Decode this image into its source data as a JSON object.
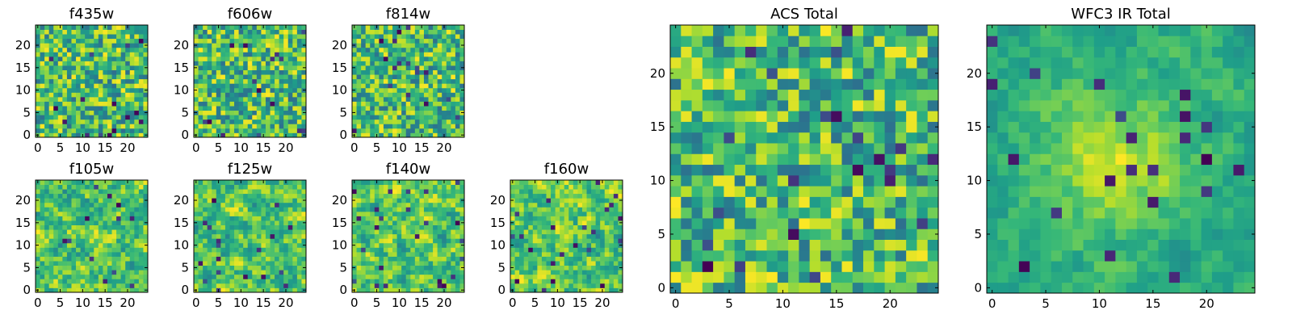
{
  "figure": "Flux cutout images per filter and stacked totals",
  "chart_data": [
    {
      "type": "heatmap",
      "title": "f435w",
      "xticks": [
        0,
        5,
        10,
        15,
        20
      ],
      "yticks": [
        0,
        5,
        10,
        15,
        20
      ],
      "grid_size": 25,
      "xlim": [
        0,
        25
      ],
      "ylim": [
        0,
        25
      ],
      "colormap": "viridis",
      "pattern": "noise"
    },
    {
      "type": "heatmap",
      "title": "f606w",
      "xticks": [
        0,
        5,
        10,
        15,
        20
      ],
      "yticks": [
        0,
        5,
        10,
        15,
        20
      ],
      "grid_size": 25,
      "xlim": [
        0,
        25
      ],
      "ylim": [
        0,
        25
      ],
      "colormap": "viridis",
      "pattern": "noise"
    },
    {
      "type": "heatmap",
      "title": "f814w",
      "xticks": [
        0,
        5,
        10,
        15,
        20
      ],
      "yticks": [
        0,
        5,
        10,
        15,
        20
      ],
      "grid_size": 25,
      "xlim": [
        0,
        25
      ],
      "ylim": [
        0,
        25
      ],
      "colormap": "viridis",
      "pattern": "noise"
    },
    {
      "type": "heatmap",
      "title": "f105w",
      "xticks": [
        0,
        5,
        10,
        15,
        20
      ],
      "yticks": [
        0,
        5,
        10,
        15,
        20
      ],
      "grid_size": 25,
      "xlim": [
        0,
        25
      ],
      "ylim": [
        0,
        25
      ],
      "colormap": "viridis",
      "pattern": "smooth"
    },
    {
      "type": "heatmap",
      "title": "f125w",
      "xticks": [
        0,
        5,
        10,
        15,
        20
      ],
      "yticks": [
        0,
        5,
        10,
        15,
        20
      ],
      "grid_size": 25,
      "xlim": [
        0,
        25
      ],
      "ylim": [
        0,
        25
      ],
      "colormap": "viridis",
      "pattern": "smooth"
    },
    {
      "type": "heatmap",
      "title": "f140w",
      "xticks": [
        0,
        5,
        10,
        15,
        20
      ],
      "yticks": [
        0,
        5,
        10,
        15,
        20
      ],
      "grid_size": 25,
      "xlim": [
        0,
        25
      ],
      "ylim": [
        0,
        25
      ],
      "colormap": "viridis",
      "pattern": "smooth"
    },
    {
      "type": "heatmap",
      "title": "f160w",
      "xticks": [
        0,
        5,
        10,
        15,
        20
      ],
      "yticks": [
        0,
        5,
        10,
        15,
        20
      ],
      "grid_size": 25,
      "xlim": [
        0,
        25
      ],
      "ylim": [
        0,
        25
      ],
      "colormap": "viridis",
      "pattern": "smooth"
    },
    {
      "type": "heatmap",
      "title": "ACS Total",
      "xticks": [
        0,
        5,
        10,
        15,
        20
      ],
      "yticks": [
        0,
        5,
        10,
        15,
        20
      ],
      "grid_size": 25,
      "xlim": [
        0,
        25
      ],
      "ylim": [
        0,
        25
      ],
      "colormap": "viridis",
      "pattern": "noise"
    },
    {
      "type": "heatmap",
      "title": "WFC3 IR Total",
      "xticks": [
        0,
        5,
        10,
        15,
        20
      ],
      "yticks": [
        0,
        5,
        10,
        15,
        20
      ],
      "grid_size": 25,
      "xlim": [
        0,
        25
      ],
      "ylim": [
        0,
        25
      ],
      "colormap": "viridis",
      "pattern": "central-bright"
    }
  ]
}
